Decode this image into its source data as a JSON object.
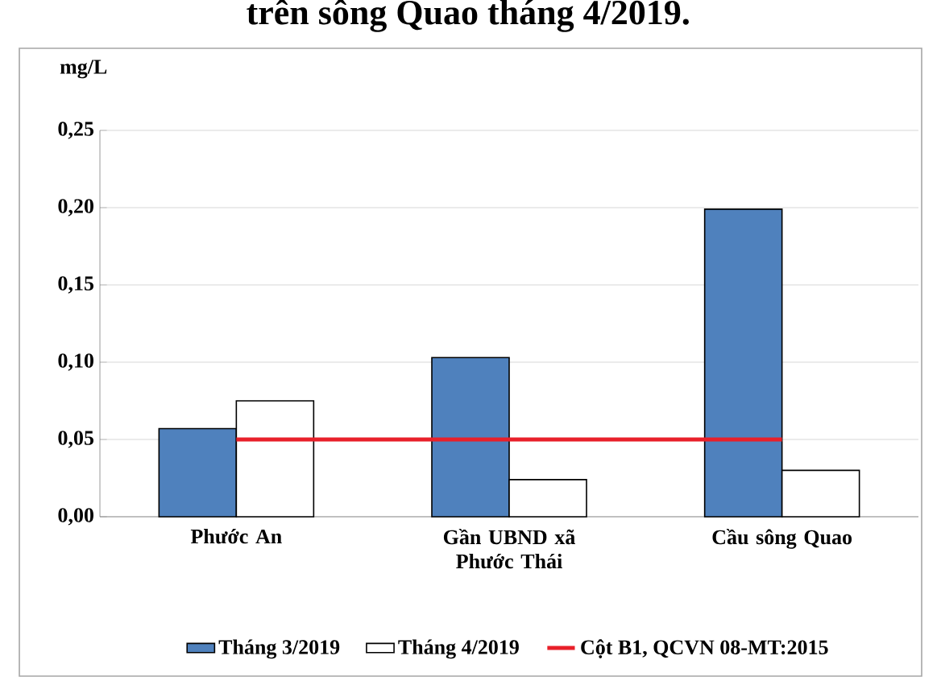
{
  "chart_data": {
    "type": "bar",
    "title": "trên sông Quao tháng 4/2019.",
    "ylabel": "mg/L",
    "categories": [
      "Phước An",
      "Gần UBND xã Phước Thái",
      "Cầu sông Quao"
    ],
    "series": [
      {
        "name": "Tháng 3/2019",
        "color": "#4f81bd",
        "values": [
          0.057,
          0.103,
          0.199
        ]
      },
      {
        "name": "Tháng 4/2019",
        "color": "#ffffff",
        "values": [
          0.075,
          0.024,
          0.03
        ]
      },
      {
        "name": "Cột B1, QCVN 08-MT:2015",
        "type": "line",
        "color": "#e8202a",
        "values": [
          0.05,
          0.05,
          0.05
        ]
      }
    ],
    "ylim": [
      0,
      0.25
    ],
    "yticks": [
      {
        "value": 0,
        "label": "0,00"
      },
      {
        "value": 0.05,
        "label": "0,05"
      },
      {
        "value": 0.1,
        "label": "0,10"
      },
      {
        "value": 0.15,
        "label": "0,15"
      },
      {
        "value": 0.2,
        "label": "0,20"
      },
      {
        "value": 0.25,
        "label": "0,25"
      }
    ],
    "grid": "y",
    "legend": "bottom"
  }
}
